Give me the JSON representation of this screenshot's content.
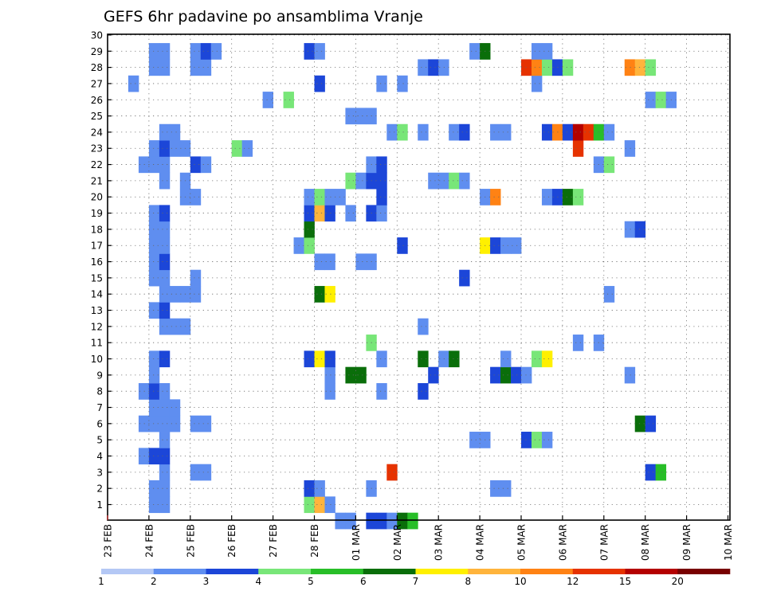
{
  "chart_data": {
    "type": "heatmap",
    "title": "GEFS 6hr padavine po ansamblima Vranje",
    "y_ticks": [
      "1",
      "2",
      "3",
      "4",
      "5",
      "6",
      "7",
      "8",
      "9",
      "10",
      "11",
      "12",
      "13",
      "14",
      "15",
      "16",
      "17",
      "18",
      "19",
      "20",
      "21",
      "22",
      "23",
      "24",
      "25",
      "26",
      "27",
      "28",
      "29",
      "30"
    ],
    "x_ticks": [
      "23 FEB",
      "24 FEB",
      "25 FEB",
      "26 FEB",
      "27 FEB",
      "28 FEB",
      "01 MAR",
      "02 MAR",
      "03 MAR",
      "04 MAR",
      "05 MAR",
      "06 MAR",
      "07 MAR",
      "08 MAR",
      "09 MAR",
      "10 MAR"
    ],
    "steps_per_day": 4,
    "grid": true,
    "colorbar": {
      "labels": [
        "1",
        "2",
        "3",
        "4",
        "5",
        "6",
        "7",
        "8",
        "10",
        "12",
        "15",
        "20"
      ],
      "colors": [
        "#b4c8f5",
        "#5f8ef0",
        "#1c46d8",
        "#78e678",
        "#28be28",
        "#0a6e0a",
        "#fff000",
        "#ffb43c",
        "#ff8214",
        "#e63200",
        "#b40000",
        "#780000"
      ]
    },
    "cells": [
      [
        24.0,
        1,
        1
      ],
      [
        24.25,
        1,
        1
      ],
      [
        27.75,
        1,
        3
      ],
      [
        28.0,
        1,
        7
      ],
      [
        28.25,
        1,
        1
      ],
      [
        28.5,
        0,
        1
      ],
      [
        28.75,
        0,
        1
      ],
      [
        29.25,
        0,
        2
      ],
      [
        29.5,
        0,
        2
      ],
      [
        29.75,
        0,
        1
      ],
      [
        30.0,
        0,
        5
      ],
      [
        30.25,
        0,
        4
      ],
      [
        24.0,
        2,
        1
      ],
      [
        24.25,
        2,
        1
      ],
      [
        27.75,
        2,
        2
      ],
      [
        28.0,
        2,
        1
      ],
      [
        29.25,
        2,
        1
      ],
      [
        32.25,
        2,
        1
      ],
      [
        32.5,
        2,
        1
      ],
      [
        24.25,
        3,
        1
      ],
      [
        25.0,
        3,
        1
      ],
      [
        25.25,
        3,
        1
      ],
      [
        29.75,
        3,
        9
      ],
      [
        36.0,
        3,
        2
      ],
      [
        36.25,
        3,
        4
      ],
      [
        23.75,
        4,
        1
      ],
      [
        24.0,
        4,
        2
      ],
      [
        24.25,
        4,
        2
      ],
      [
        24.25,
        5,
        1
      ],
      [
        31.75,
        5,
        1
      ],
      [
        32.0,
        5,
        1
      ],
      [
        33.0,
        5,
        2
      ],
      [
        33.25,
        5,
        3
      ],
      [
        33.5,
        5,
        1
      ],
      [
        23.75,
        6,
        1
      ],
      [
        24.0,
        6,
        1
      ],
      [
        24.25,
        6,
        1
      ],
      [
        24.5,
        6,
        1
      ],
      [
        25.0,
        6,
        1
      ],
      [
        25.25,
        6,
        1
      ],
      [
        35.75,
        6,
        5
      ],
      [
        36.0,
        6,
        2
      ],
      [
        24.0,
        7,
        1
      ],
      [
        24.25,
        7,
        1
      ],
      [
        24.5,
        7,
        1
      ],
      [
        23.75,
        8,
        1
      ],
      [
        24.0,
        8,
        2
      ],
      [
        24.25,
        8,
        1
      ],
      [
        28.25,
        8,
        1
      ],
      [
        29.5,
        8,
        1
      ],
      [
        30.5,
        8,
        2
      ],
      [
        24.0,
        9,
        1
      ],
      [
        28.25,
        9,
        1
      ],
      [
        28.75,
        9,
        5
      ],
      [
        29.0,
        9,
        5
      ],
      [
        30.75,
        9,
        2
      ],
      [
        32.25,
        9,
        2
      ],
      [
        32.5,
        9,
        5
      ],
      [
        32.75,
        9,
        2
      ],
      [
        33.0,
        9,
        1
      ],
      [
        35.5,
        9,
        1
      ],
      [
        24.0,
        10,
        1
      ],
      [
        24.25,
        10,
        2
      ],
      [
        27.75,
        10,
        2
      ],
      [
        28.0,
        10,
        6
      ],
      [
        28.25,
        10,
        2
      ],
      [
        29.5,
        10,
        1
      ],
      [
        30.5,
        10,
        5
      ],
      [
        31.0,
        10,
        1
      ],
      [
        31.25,
        10,
        5
      ],
      [
        32.5,
        10,
        1
      ],
      [
        33.25,
        10,
        3
      ],
      [
        33.5,
        10,
        6
      ],
      [
        29.25,
        11,
        3
      ],
      [
        34.25,
        11,
        1
      ],
      [
        34.75,
        11,
        1
      ],
      [
        24.25,
        12,
        1
      ],
      [
        24.5,
        12,
        1
      ],
      [
        24.75,
        12,
        1
      ],
      [
        30.5,
        12,
        1
      ],
      [
        24.0,
        13,
        1
      ],
      [
        24.25,
        13,
        2
      ],
      [
        24.25,
        14,
        1
      ],
      [
        24.5,
        14,
        1
      ],
      [
        24.75,
        14,
        1
      ],
      [
        25.0,
        14,
        1
      ],
      [
        28.0,
        14,
        5
      ],
      [
        28.25,
        14,
        6
      ],
      [
        35.0,
        14,
        1
      ],
      [
        24.0,
        15,
        1
      ],
      [
        24.25,
        15,
        1
      ],
      [
        25.0,
        15,
        1
      ],
      [
        31.5,
        15,
        2
      ],
      [
        24.0,
        16,
        1
      ],
      [
        24.25,
        16,
        2
      ],
      [
        28.0,
        16,
        1
      ],
      [
        28.25,
        16,
        1
      ],
      [
        29.0,
        16,
        1
      ],
      [
        29.25,
        16,
        1
      ],
      [
        24.0,
        17,
        1
      ],
      [
        24.25,
        17,
        1
      ],
      [
        27.5,
        17,
        1
      ],
      [
        27.75,
        17,
        3
      ],
      [
        30.0,
        17,
        2
      ],
      [
        32.0,
        17,
        6
      ],
      [
        32.25,
        17,
        2
      ],
      [
        32.5,
        17,
        1
      ],
      [
        32.75,
        17,
        1
      ],
      [
        24.0,
        18,
        1
      ],
      [
        24.25,
        18,
        1
      ],
      [
        27.75,
        18,
        5
      ],
      [
        35.5,
        18,
        1
      ],
      [
        35.75,
        18,
        2
      ],
      [
        24.0,
        19,
        1
      ],
      [
        24.25,
        19,
        2
      ],
      [
        27.75,
        19,
        2
      ],
      [
        28.0,
        19,
        7
      ],
      [
        28.25,
        19,
        2
      ],
      [
        28.75,
        19,
        1
      ],
      [
        29.25,
        19,
        2
      ],
      [
        29.5,
        19,
        1
      ],
      [
        24.75,
        20,
        1
      ],
      [
        25.0,
        20,
        1
      ],
      [
        27.75,
        20,
        1
      ],
      [
        28.0,
        20,
        3
      ],
      [
        28.25,
        20,
        1
      ],
      [
        28.5,
        20,
        1
      ],
      [
        29.5,
        20,
        2
      ],
      [
        32.0,
        20,
        1
      ],
      [
        32.25,
        20,
        8
      ],
      [
        33.5,
        20,
        1
      ],
      [
        33.75,
        20,
        2
      ],
      [
        34.0,
        20,
        5
      ],
      [
        34.25,
        20,
        3
      ],
      [
        24.25,
        21,
        1
      ],
      [
        24.75,
        21,
        1
      ],
      [
        28.75,
        21,
        3
      ],
      [
        29.0,
        21,
        1
      ],
      [
        29.25,
        21,
        2
      ],
      [
        29.5,
        21,
        2
      ],
      [
        30.75,
        21,
        1
      ],
      [
        31.0,
        21,
        1
      ],
      [
        31.25,
        21,
        3
      ],
      [
        31.5,
        21,
        1
      ],
      [
        23.75,
        22,
        1
      ],
      [
        24.0,
        22,
        1
      ],
      [
        24.25,
        22,
        1
      ],
      [
        25.0,
        22,
        2
      ],
      [
        25.25,
        22,
        1
      ],
      [
        29.25,
        22,
        1
      ],
      [
        29.5,
        22,
        2
      ],
      [
        34.75,
        22,
        1
      ],
      [
        35.0,
        22,
        3
      ],
      [
        24.0,
        23,
        1
      ],
      [
        24.25,
        23,
        2
      ],
      [
        24.5,
        23,
        1
      ],
      [
        24.75,
        23,
        1
      ],
      [
        26.0,
        23,
        3
      ],
      [
        26.25,
        23,
        1
      ],
      [
        34.25,
        23,
        9
      ],
      [
        35.5,
        23,
        1
      ],
      [
        24.25,
        24,
        1
      ],
      [
        24.5,
        24,
        1
      ],
      [
        29.75,
        24,
        1
      ],
      [
        30.0,
        24,
        3
      ],
      [
        30.5,
        24,
        1
      ],
      [
        31.25,
        24,
        1
      ],
      [
        31.5,
        24,
        2
      ],
      [
        32.25,
        24,
        1
      ],
      [
        32.5,
        24,
        1
      ],
      [
        33.5,
        24,
        2
      ],
      [
        33.75,
        24,
        8
      ],
      [
        34.0,
        24,
        2
      ],
      [
        34.25,
        24,
        10
      ],
      [
        34.5,
        24,
        9
      ],
      [
        34.75,
        24,
        4
      ],
      [
        35.0,
        24,
        1
      ],
      [
        28.75,
        25,
        1
      ],
      [
        29.0,
        25,
        1
      ],
      [
        29.25,
        25,
        1
      ],
      [
        26.75,
        26,
        1
      ],
      [
        27.25,
        26,
        3
      ],
      [
        36.0,
        26,
        1
      ],
      [
        36.25,
        26,
        3
      ],
      [
        36.5,
        26,
        1
      ],
      [
        23.5,
        27,
        1
      ],
      [
        28.0,
        27,
        2
      ],
      [
        29.5,
        27,
        1
      ],
      [
        30.0,
        27,
        1
      ],
      [
        33.25,
        27,
        1
      ],
      [
        24.0,
        28,
        1
      ],
      [
        24.25,
        28,
        1
      ],
      [
        25.0,
        28,
        1
      ],
      [
        25.25,
        28,
        1
      ],
      [
        30.5,
        28,
        1
      ],
      [
        30.75,
        28,
        2
      ],
      [
        31.0,
        28,
        1
      ],
      [
        33.0,
        28,
        9
      ],
      [
        33.25,
        28,
        8
      ],
      [
        33.5,
        28,
        3
      ],
      [
        33.75,
        28,
        2
      ],
      [
        34.0,
        28,
        3
      ],
      [
        35.5,
        28,
        8
      ],
      [
        35.75,
        28,
        7
      ],
      [
        36.0,
        28,
        3
      ],
      [
        24.0,
        29,
        1
      ],
      [
        24.25,
        29,
        1
      ],
      [
        25.0,
        29,
        1
      ],
      [
        25.25,
        29,
        2
      ],
      [
        25.5,
        29,
        1
      ],
      [
        27.75,
        29,
        2
      ],
      [
        28.0,
        29,
        1
      ],
      [
        31.75,
        29,
        1
      ],
      [
        32.0,
        29,
        5
      ],
      [
        33.25,
        29,
        1
      ],
      [
        33.5,
        29,
        1
      ]
    ]
  }
}
